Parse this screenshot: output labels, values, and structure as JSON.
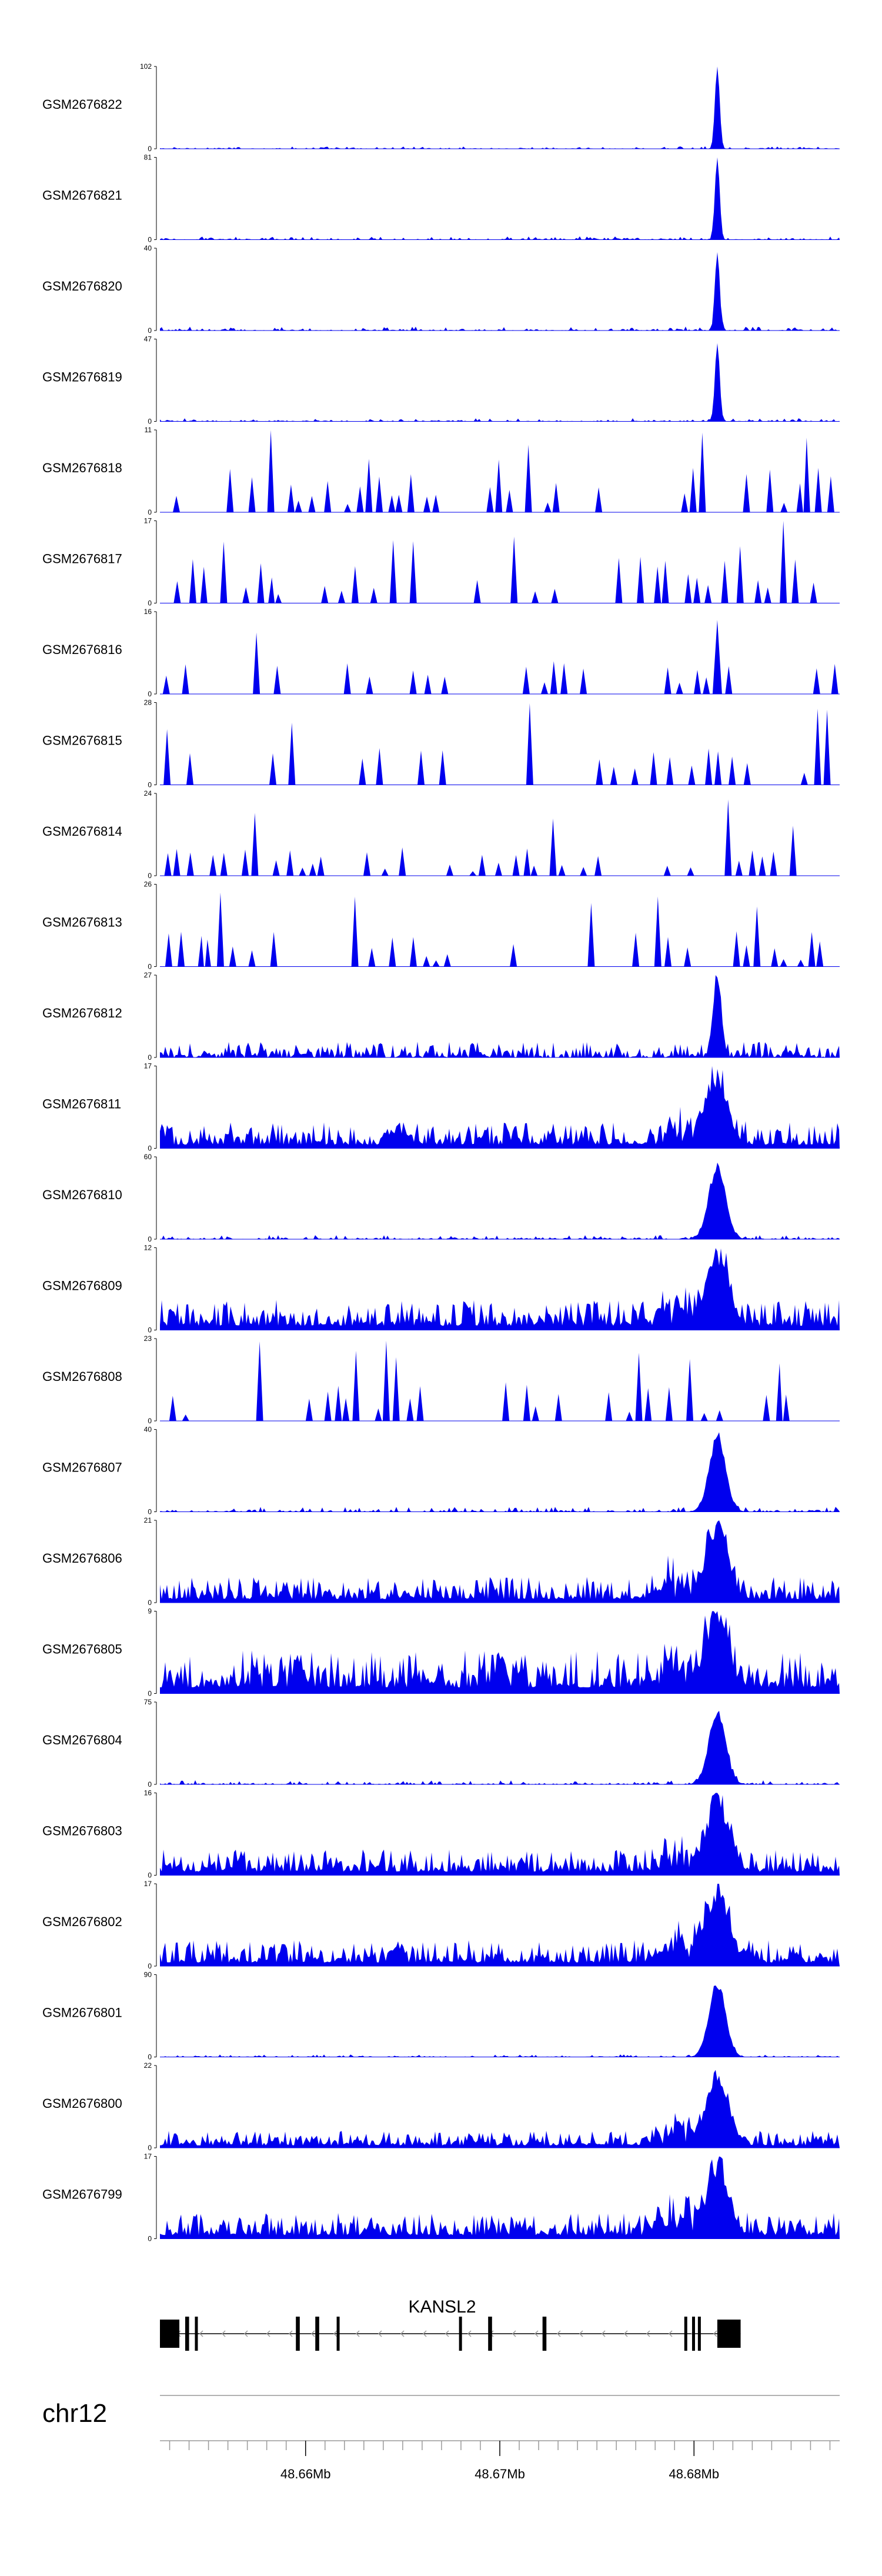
{
  "chart_data": {
    "type": "area",
    "title": "",
    "chromosome": "chr12",
    "region_mb": [
      48.6525,
      48.6875
    ],
    "gene": {
      "name": "KANSL2",
      "strand": "-",
      "exons_mb": [
        [
          48.6525,
          48.6535
        ],
        [
          48.6538,
          48.654
        ],
        [
          48.6543,
          48.6544
        ],
        [
          48.6595,
          48.6597
        ],
        [
          48.6605,
          48.6607
        ],
        [
          48.6616,
          48.6617
        ],
        [
          48.6679,
          48.668
        ],
        [
          48.6694,
          48.6696
        ],
        [
          48.6722,
          48.6724
        ],
        [
          48.6795,
          48.6796
        ],
        [
          48.6799,
          48.68
        ],
        [
          48.6802,
          48.6803
        ],
        [
          48.6812,
          48.6824
        ]
      ]
    },
    "xticks_mb": [
      48.66,
      48.67,
      48.68
    ],
    "xtick_labels": [
      "48.66Mb",
      "48.67Mb",
      "48.68Mb"
    ],
    "series": [
      {
        "name": "GSM2676822",
        "ymax": 102,
        "ymin_label": "0",
        "ymax_label": "102",
        "profile": "sharp",
        "peak": 1.0,
        "baseline": 0.03
      },
      {
        "name": "GSM2676821",
        "ymax": 81,
        "ymin_label": "0",
        "ymax_label": "81",
        "profile": "sharp",
        "peak": 1.0,
        "baseline": 0.04
      },
      {
        "name": "GSM2676820",
        "ymax": 40,
        "ymin_label": "0",
        "ymax_label": "40",
        "profile": "sharp",
        "peak": 0.95,
        "baseline": 0.05
      },
      {
        "name": "GSM2676819",
        "ymax": 47,
        "ymin_label": "0",
        "ymax_label": "47",
        "profile": "sharp",
        "peak": 0.95,
        "baseline": 0.04
      },
      {
        "name": "GSM2676818",
        "ymax": 11,
        "ymin_label": "0",
        "ymax_label": "11",
        "profile": "spiky",
        "peak": 0.5,
        "baseline": 0.6
      },
      {
        "name": "GSM2676817",
        "ymax": 17,
        "ymin_label": "0",
        "ymax_label": "17",
        "profile": "spiky",
        "peak": 0.5,
        "baseline": 0.6
      },
      {
        "name": "GSM2676816",
        "ymax": 16,
        "ymin_label": "0",
        "ymax_label": "16",
        "profile": "spiky",
        "peak": 0.9,
        "baseline": 0.4
      },
      {
        "name": "GSM2676815",
        "ymax": 28,
        "ymin_label": "0",
        "ymax_label": "28",
        "profile": "spiky",
        "peak": 0.4,
        "baseline": 0.45
      },
      {
        "name": "GSM2676814",
        "ymax": 24,
        "ymin_label": "0",
        "ymax_label": "24",
        "profile": "spiky",
        "peak": 0.6,
        "baseline": 0.35
      },
      {
        "name": "GSM2676813",
        "ymax": 26,
        "ymin_label": "0",
        "ymax_label": "26",
        "profile": "spiky",
        "peak": 0.4,
        "baseline": 0.45
      },
      {
        "name": "GSM2676812",
        "ymax": 27,
        "ymin_label": "0",
        "ymax_label": "27",
        "profile": "medium",
        "peak": 0.95,
        "baseline": 0.12
      },
      {
        "name": "GSM2676811",
        "ymax": 17,
        "ymin_label": "0",
        "ymax_label": "17",
        "profile": "dense",
        "peak": 0.9,
        "baseline": 0.3
      },
      {
        "name": "GSM2676810",
        "ymax": 60,
        "ymin_label": "0",
        "ymax_label": "60",
        "profile": "broad",
        "peak": 0.95,
        "baseline": 0.05
      },
      {
        "name": "GSM2676809",
        "ymax": 12,
        "ymin_label": "0",
        "ymax_label": "12",
        "profile": "dense",
        "peak": 0.95,
        "baseline": 0.35
      },
      {
        "name": "GSM2676808",
        "ymax": 23,
        "ymin_label": "0",
        "ymax_label": "23",
        "profile": "spiky",
        "peak": 0.5,
        "baseline": 0.5
      },
      {
        "name": "GSM2676807",
        "ymax": 40,
        "ymin_label": "0",
        "ymax_label": "40",
        "profile": "broad",
        "peak": 0.95,
        "baseline": 0.06
      },
      {
        "name": "GSM2676806",
        "ymax": 21,
        "ymin_label": "0",
        "ymax_label": "21",
        "profile": "dense",
        "peak": 0.95,
        "baseline": 0.3
      },
      {
        "name": "GSM2676805",
        "ymax": 9,
        "ymin_label": "0",
        "ymax_label": "9",
        "profile": "dense",
        "peak": 0.95,
        "baseline": 0.5
      },
      {
        "name": "GSM2676804",
        "ymax": 75,
        "ymin_label": "0",
        "ymax_label": "75",
        "profile": "broad",
        "peak": 0.95,
        "baseline": 0.05
      },
      {
        "name": "GSM2676803",
        "ymax": 16,
        "ymin_label": "0",
        "ymax_label": "16",
        "profile": "dense",
        "peak": 0.95,
        "baseline": 0.3
      },
      {
        "name": "GSM2676802",
        "ymax": 17,
        "ymin_label": "0",
        "ymax_label": "17",
        "profile": "dense",
        "peak": 0.95,
        "baseline": 0.3
      },
      {
        "name": "GSM2676801",
        "ymax": 90,
        "ymin_label": "0",
        "ymax_label": "90",
        "profile": "broad",
        "peak": 0.95,
        "baseline": 0.03
      },
      {
        "name": "GSM2676800",
        "ymax": 22,
        "ymin_label": "0",
        "ymax_label": "22",
        "profile": "dense",
        "peak": 0.95,
        "baseline": 0.2
      },
      {
        "name": "GSM2676799",
        "ymax": 17,
        "ymin_label": "0",
        "ymax_label": "17",
        "profile": "dense",
        "peak": 0.95,
        "baseline": 0.3
      }
    ],
    "peak_center_mb": 48.6812,
    "fill_color": "#0000ee",
    "gene_color": "#000000",
    "axis_color": "#000000",
    "ruler_color": "#999999"
  }
}
